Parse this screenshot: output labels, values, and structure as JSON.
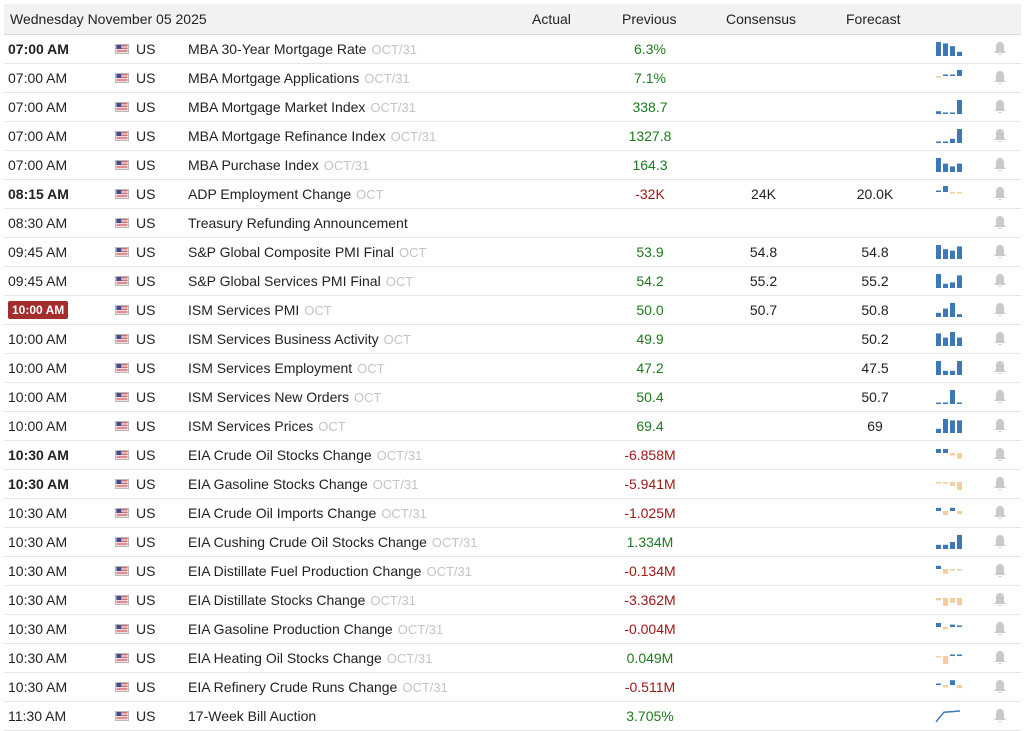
{
  "header": {
    "date": "Wednesday November 05 2025",
    "actual": "Actual",
    "previous": "Previous",
    "consensus": "Consensus",
    "forecast": "Forecast"
  },
  "colors": {
    "positive": "#1e7a1e",
    "negative": "#a01818",
    "highlight_time": "#a32c2c",
    "spark_blue": "#3d79b7",
    "spark_orange": "#f3cfa0"
  },
  "rows": [
    {
      "time": "07:00 AM",
      "bold": true,
      "country": "US",
      "event": "MBA 30-Year Mortgage Rate",
      "period": "OCT/31",
      "actual": "",
      "previous": "6.3%",
      "prev_dir": "pos",
      "consensus": "",
      "forecast": "",
      "spark": [
        1,
        0.9,
        0.7,
        0.3
      ],
      "spark_dir": "up"
    },
    {
      "time": "07:00 AM",
      "country": "US",
      "event": "MBA Mortgage Applications",
      "period": "OCT/31",
      "actual": "",
      "previous": "7.1%",
      "prev_dir": "pos",
      "consensus": "",
      "forecast": "",
      "spark": [
        -0.2,
        0.05,
        0.05,
        1
      ],
      "spark_dir": "mixed"
    },
    {
      "time": "07:00 AM",
      "country": "US",
      "event": "MBA Mortgage Market Index",
      "period": "OCT/31",
      "actual": "",
      "previous": "338.7",
      "prev_dir": "pos",
      "consensus": "",
      "forecast": "",
      "spark": [
        0.2,
        0.05,
        0.05,
        1
      ],
      "spark_dir": "up"
    },
    {
      "time": "07:00 AM",
      "country": "US",
      "event": "MBA Mortgage Refinance Index",
      "period": "OCT/31",
      "actual": "",
      "previous": "1327.8",
      "prev_dir": "pos",
      "consensus": "",
      "forecast": "",
      "spark": [
        0.1,
        0.1,
        0.3,
        1
      ],
      "spark_dir": "up"
    },
    {
      "time": "07:00 AM",
      "country": "US",
      "event": "MBA Purchase Index",
      "period": "OCT/31",
      "actual": "",
      "previous": "164.3",
      "prev_dir": "pos",
      "consensus": "",
      "forecast": "",
      "spark": [
        1,
        0.6,
        0.4,
        0.6
      ],
      "spark_dir": "up"
    },
    {
      "time": "08:15 AM",
      "bold": true,
      "country": "US",
      "event": "ADP Employment Change",
      "period": "OCT",
      "actual": "",
      "previous": "-32K",
      "prev_dir": "neg",
      "consensus": "24K",
      "forecast": "20.0K",
      "spark": [
        0.05,
        1,
        -0.2,
        -0.1
      ],
      "spark_dir": "mixed"
    },
    {
      "time": "08:30 AM",
      "country": "US",
      "event": "Treasury Refunding Announcement",
      "period": "",
      "actual": "",
      "previous": "",
      "prev_dir": "",
      "consensus": "",
      "forecast": "",
      "spark": [],
      "spark_dir": "none"
    },
    {
      "time": "09:45 AM",
      "country": "US",
      "event": "S&P Global Composite PMI Final",
      "period": "OCT",
      "actual": "",
      "previous": "53.9",
      "prev_dir": "pos",
      "consensus": "54.8",
      "forecast": "54.8",
      "spark": [
        1,
        0.7,
        0.6,
        0.9
      ],
      "spark_dir": "up"
    },
    {
      "time": "09:45 AM",
      "country": "US",
      "event": "S&P Global Services PMI Final",
      "period": "OCT",
      "actual": "",
      "previous": "54.2",
      "prev_dir": "pos",
      "consensus": "55.2",
      "forecast": "55.2",
      "spark": [
        1,
        0.3,
        0.4,
        0.9
      ],
      "spark_dir": "up"
    },
    {
      "time": "10:00 AM",
      "highlight": true,
      "country": "US",
      "event": "ISM Services PMI",
      "period": "OCT",
      "actual": "",
      "previous": "50.0",
      "prev_dir": "pos",
      "consensus": "50.7",
      "forecast": "50.8",
      "spark": [
        0.3,
        0.6,
        1,
        0.2
      ],
      "spark_dir": "up"
    },
    {
      "time": "10:00 AM",
      "country": "US",
      "event": "ISM Services Business Activity",
      "period": "OCT",
      "actual": "",
      "previous": "49.9",
      "prev_dir": "pos",
      "consensus": "",
      "forecast": "50.2",
      "spark": [
        0.9,
        0.6,
        1,
        0.6
      ],
      "spark_dir": "up"
    },
    {
      "time": "10:00 AM",
      "country": "US",
      "event": "ISM Services Employment",
      "period": "OCT",
      "actual": "",
      "previous": "47.2",
      "prev_dir": "pos",
      "consensus": "",
      "forecast": "47.5",
      "spark": [
        1,
        0.3,
        0.3,
        1
      ],
      "spark_dir": "up"
    },
    {
      "time": "10:00 AM",
      "country": "US",
      "event": "ISM Services New Orders",
      "period": "OCT",
      "actual": "",
      "previous": "50.4",
      "prev_dir": "pos",
      "consensus": "",
      "forecast": "50.7",
      "spark": [
        0.05,
        0.05,
        1,
        0.1
      ],
      "spark_dir": "up"
    },
    {
      "time": "10:00 AM",
      "country": "US",
      "event": "ISM Services Prices",
      "period": "OCT",
      "actual": "",
      "previous": "69.4",
      "prev_dir": "pos",
      "consensus": "",
      "forecast": "69",
      "spark": [
        0.3,
        1,
        0.9,
        0.9
      ],
      "spark_dir": "up"
    },
    {
      "time": "10:30 AM",
      "bold": true,
      "country": "US",
      "event": "EIA Crude Oil Stocks Change",
      "period": "OCT/31",
      "actual": "",
      "previous": "-6.858M",
      "prev_dir": "neg",
      "consensus": "",
      "forecast": "",
      "spark": [
        0.5,
        0.5,
        -0.3,
        -0.7
      ],
      "spark_dir": "mixed"
    },
    {
      "time": "10:30 AM",
      "bold": true,
      "country": "US",
      "event": "EIA Gasoline Stocks Change",
      "period": "OCT/31",
      "actual": "",
      "previous": "-5.941M",
      "prev_dir": "neg",
      "consensus": "",
      "forecast": "",
      "spark": [
        -0.2,
        -0.2,
        -0.5,
        -1
      ],
      "spark_dir": "mixed"
    },
    {
      "time": "10:30 AM",
      "country": "US",
      "event": "EIA Crude Oil Imports Change",
      "period": "OCT/31",
      "actual": "",
      "previous": "-1.025M",
      "prev_dir": "neg",
      "consensus": "",
      "forecast": "",
      "spark": [
        0.4,
        -0.5,
        0.4,
        -0.4
      ],
      "spark_dir": "mixed"
    },
    {
      "time": "10:30 AM",
      "country": "US",
      "event": "EIA Cushing Crude Oil Stocks Change",
      "period": "OCT/31",
      "actual": "",
      "previous": "1.334M",
      "prev_dir": "pos",
      "consensus": "",
      "forecast": "",
      "spark": [
        0.3,
        0.3,
        0.5,
        1
      ],
      "spark_dir": "mixed"
    },
    {
      "time": "10:30 AM",
      "country": "US",
      "event": "EIA Distillate Fuel Production Change",
      "period": "OCT/31",
      "actual": "",
      "previous": "-0.134M",
      "prev_dir": "neg",
      "consensus": "",
      "forecast": "",
      "spark": [
        0.4,
        -0.6,
        -0.2,
        -0.1
      ],
      "spark_dir": "mixed"
    },
    {
      "time": "10:30 AM",
      "country": "US",
      "event": "EIA Distillate Stocks Change",
      "period": "OCT/31",
      "actual": "",
      "previous": "-3.362M",
      "prev_dir": "neg",
      "consensus": "",
      "forecast": "",
      "spark": [
        -0.3,
        -1,
        -0.6,
        -0.9
      ],
      "spark_dir": "mixed"
    },
    {
      "time": "10:30 AM",
      "country": "US",
      "event": "EIA Gasoline Production Change",
      "period": "OCT/31",
      "actual": "",
      "previous": "-0.004M",
      "prev_dir": "neg",
      "consensus": "",
      "forecast": "",
      "spark": [
        0.5,
        -0.3,
        0.3,
        0
      ],
      "spark_dir": "mixed"
    },
    {
      "time": "10:30 AM",
      "country": "US",
      "event": "EIA Heating Oil Stocks Change",
      "period": "OCT/31",
      "actual": "",
      "previous": "0.049M",
      "prev_dir": "pos",
      "consensus": "",
      "forecast": "",
      "spark": [
        -0.1,
        -1,
        0.1,
        0.1
      ],
      "spark_dir": "mixed"
    },
    {
      "time": "10:30 AM",
      "country": "US",
      "event": "EIA Refinery Crude Runs Change",
      "period": "OCT/31",
      "actual": "",
      "previous": "-0.511M",
      "prev_dir": "neg",
      "consensus": "",
      "forecast": "",
      "spark": [
        0.1,
        -0.3,
        0.6,
        -0.4
      ],
      "spark_dir": "mixed"
    },
    {
      "time": "11:30 AM",
      "country": "US",
      "event": "17-Week Bill Auction",
      "period": "",
      "actual": "",
      "previous": "3.705%",
      "prev_dir": "pos",
      "consensus": "",
      "forecast": "",
      "spark": [
        0.1,
        0.9,
        0.95,
        1
      ],
      "spark_dir": "line"
    }
  ]
}
